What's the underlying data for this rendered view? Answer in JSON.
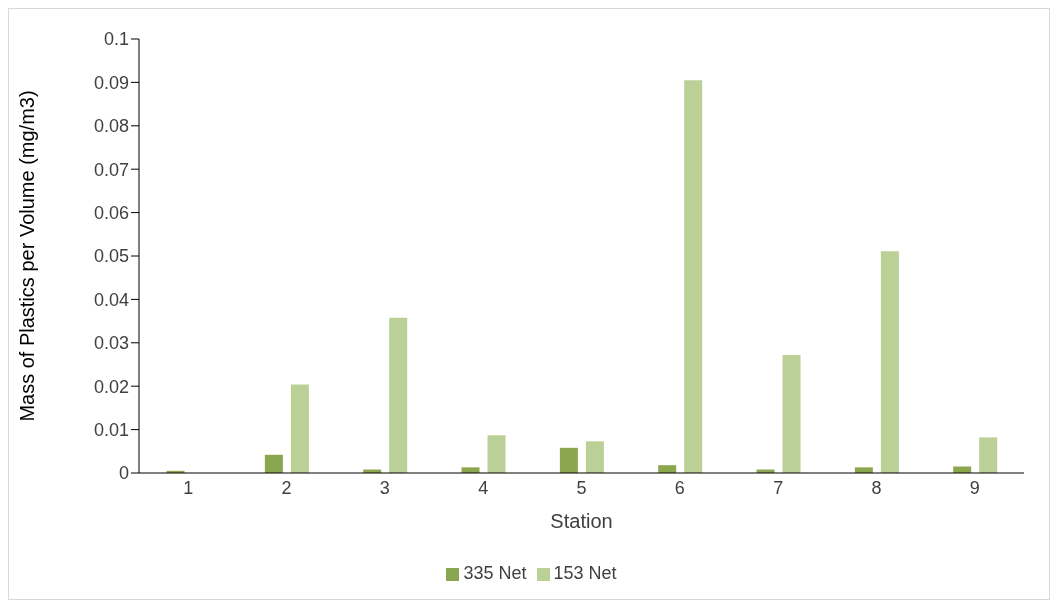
{
  "chart_data": {
    "type": "bar",
    "xlabel": "Station",
    "ylabel": "Mass of Plastics per Volume (mg/m3)",
    "categories": [
      "1",
      "2",
      "3",
      "4",
      "5",
      "6",
      "7",
      "8",
      "9"
    ],
    "series": [
      {
        "name": "335 Net",
        "color": "#8aa64e",
        "values": [
          0.0005,
          0.0042,
          0.0008,
          0.0013,
          0.0058,
          0.0018,
          0.0008,
          0.0013,
          0.0015
        ]
      },
      {
        "name": "153 Net",
        "color": "#bbd096",
        "values": [
          null,
          0.0204,
          0.0358,
          0.0087,
          0.0073,
          0.0905,
          0.0272,
          0.0511,
          0.0082
        ]
      }
    ],
    "ylim": [
      0,
      0.1
    ],
    "yticks": [
      0,
      0.01,
      0.02,
      0.03,
      0.04,
      0.05,
      0.06,
      0.07,
      0.08,
      0.09,
      0.1
    ],
    "grid": false,
    "legend": "bottom"
  }
}
